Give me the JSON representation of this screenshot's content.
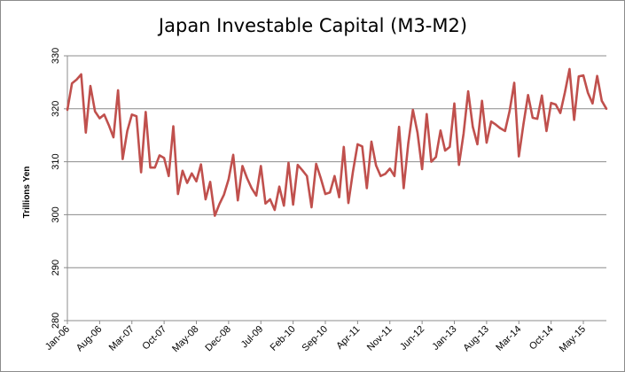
{
  "chart_data": {
    "type": "line",
    "title": "Japan Investable Capital (M3-M2)",
    "xlabel": "",
    "ylabel": "Trillions Yen",
    "ylim": [
      280,
      330
    ],
    "yticks": [
      280,
      290,
      300,
      310,
      320,
      330
    ],
    "x_tick_labels": [
      "Jan-06",
      "Aug-06",
      "Mar-07",
      "Oct-07",
      "May-08",
      "Dec-08",
      "Jul-09",
      "Feb-10",
      "Sep-10",
      "Apr-11",
      "Nov-11",
      "Jun-12",
      "Jan-13",
      "Aug-13",
      "Mar-14",
      "Oct-14",
      "May-15"
    ],
    "grid": "horizontal",
    "legend": "none",
    "series": [
      {
        "color": "#c0504d",
        "values": [
          319.8,
          324.8,
          325.5,
          326.5,
          315.5,
          324.3,
          319.5,
          318.2,
          318.9,
          316.9,
          314.6,
          323.5,
          310.5,
          315.8,
          318.9,
          318.6,
          308.0,
          319.4,
          308.9,
          308.9,
          311.2,
          310.7,
          307.3,
          316.7,
          303.9,
          308.3,
          306.0,
          307.8,
          306.3,
          309.5,
          302.9,
          306.2,
          299.8,
          302.0,
          303.8,
          306.7,
          311.3,
          302.7,
          309.2,
          306.9,
          305.0,
          303.6,
          309.2,
          302.1,
          302.9,
          300.9,
          305.3,
          301.7,
          309.8,
          301.9,
          309.4,
          308.4,
          307.3,
          301.4,
          309.6,
          306.9,
          303.9,
          304.2,
          307.3,
          303.3,
          312.8,
          302.2,
          308.2,
          313.3,
          312.9,
          305.0,
          313.8,
          309.3,
          307.3,
          307.7,
          308.7,
          307.3,
          316.6,
          305.0,
          313.5,
          319.8,
          315.5,
          308.6,
          319.0,
          310.0,
          310.9,
          315.9,
          312.1,
          312.8,
          321.0,
          309.4,
          315.3,
          323.3,
          316.6,
          313.3,
          321.5,
          313.6,
          317.6,
          317.0,
          316.3,
          315.8,
          319.6,
          324.9,
          311.0,
          317.1,
          322.6,
          318.3,
          318.1,
          322.5,
          315.8,
          321.1,
          320.8,
          319.2,
          323.1,
          327.5,
          317.9,
          326.1,
          326.3,
          323.0,
          321.0,
          326.2,
          321.5,
          320.0
        ]
      }
    ]
  }
}
